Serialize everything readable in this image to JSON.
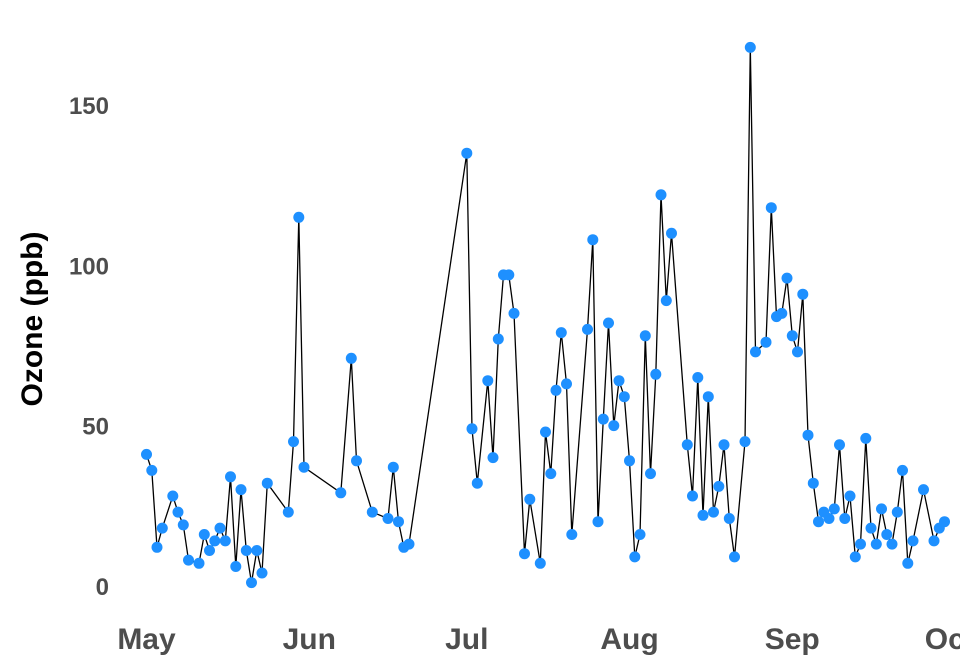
{
  "chart_data": {
    "type": "line",
    "ylabel": "Ozone (ppb)",
    "xlabel": "",
    "title": "",
    "ylim": [
      -6,
      175
    ],
    "xlim": [
      "1973-04-25",
      "1973-10-02"
    ],
    "y_ticks": [
      0,
      50,
      100,
      150
    ],
    "x_ticks": [
      {
        "date": "1973-05-01",
        "label": "May"
      },
      {
        "date": "1973-06-01",
        "label": "Jun"
      },
      {
        "date": "1973-07-01",
        "label": "Jul"
      },
      {
        "date": "1973-08-01",
        "label": "Aug"
      },
      {
        "date": "1973-09-01",
        "label": "Sep"
      },
      {
        "date": "1973-10-01",
        "label": "Oct"
      }
    ],
    "grid": false,
    "line_color": "#000000",
    "point_color": "#1e90ff",
    "series": [
      {
        "points": [
          [
            "1973-05-01",
            41
          ],
          [
            "1973-05-02",
            36
          ],
          [
            "1973-05-03",
            12
          ],
          [
            "1973-05-04",
            18
          ],
          [
            "1973-05-06",
            28
          ],
          [
            "1973-05-07",
            23
          ],
          [
            "1973-05-08",
            19
          ],
          [
            "1973-05-09",
            8
          ],
          [
            "1973-05-11",
            7
          ],
          [
            "1973-05-12",
            16
          ],
          [
            "1973-05-13",
            11
          ],
          [
            "1973-05-14",
            14
          ],
          [
            "1973-05-15",
            18
          ],
          [
            "1973-05-16",
            14
          ],
          [
            "1973-05-17",
            34
          ],
          [
            "1973-05-18",
            6
          ],
          [
            "1973-05-19",
            30
          ],
          [
            "1973-05-20",
            11
          ],
          [
            "1973-05-21",
            1
          ],
          [
            "1973-05-22",
            11
          ],
          [
            "1973-05-23",
            4
          ],
          [
            "1973-05-24",
            32
          ],
          [
            "1973-05-28",
            23
          ],
          [
            "1973-05-29",
            45
          ],
          [
            "1973-05-30",
            115
          ],
          [
            "1973-05-31",
            37
          ],
          [
            "1973-06-07",
            29
          ],
          [
            "1973-06-09",
            71
          ],
          [
            "1973-06-10",
            39
          ],
          [
            "1973-06-13",
            23
          ],
          [
            "1973-06-16",
            21
          ],
          [
            "1973-06-17",
            37
          ],
          [
            "1973-06-18",
            20
          ],
          [
            "1973-06-19",
            12
          ],
          [
            "1973-06-20",
            13
          ],
          [
            "1973-07-01",
            135
          ],
          [
            "1973-07-02",
            49
          ],
          [
            "1973-07-03",
            32
          ],
          [
            "1973-07-05",
            64
          ],
          [
            "1973-07-06",
            40
          ],
          [
            "1973-07-07",
            77
          ],
          [
            "1973-07-08",
            97
          ],
          [
            "1973-07-09",
            97
          ],
          [
            "1973-07-10",
            85
          ],
          [
            "1973-07-12",
            10
          ],
          [
            "1973-07-13",
            27
          ],
          [
            "1973-07-15",
            7
          ],
          [
            "1973-07-16",
            48
          ],
          [
            "1973-07-17",
            35
          ],
          [
            "1973-07-18",
            61
          ],
          [
            "1973-07-19",
            79
          ],
          [
            "1973-07-20",
            63
          ],
          [
            "1973-07-21",
            16
          ],
          [
            "1973-07-24",
            80
          ],
          [
            "1973-07-25",
            108
          ],
          [
            "1973-07-26",
            20
          ],
          [
            "1973-07-27",
            52
          ],
          [
            "1973-07-28",
            82
          ],
          [
            "1973-07-29",
            50
          ],
          [
            "1973-07-30",
            64
          ],
          [
            "1973-07-31",
            59
          ],
          [
            "1973-08-01",
            39
          ],
          [
            "1973-08-02",
            9
          ],
          [
            "1973-08-03",
            16
          ],
          [
            "1973-08-04",
            78
          ],
          [
            "1973-08-05",
            35
          ],
          [
            "1973-08-06",
            66
          ],
          [
            "1973-08-07",
            122
          ],
          [
            "1973-08-08",
            89
          ],
          [
            "1973-08-09",
            110
          ],
          [
            "1973-08-12",
            44
          ],
          [
            "1973-08-13",
            28
          ],
          [
            "1973-08-14",
            65
          ],
          [
            "1973-08-15",
            22
          ],
          [
            "1973-08-16",
            59
          ],
          [
            "1973-08-17",
            23
          ],
          [
            "1973-08-18",
            31
          ],
          [
            "1973-08-19",
            44
          ],
          [
            "1973-08-20",
            21
          ],
          [
            "1973-08-21",
            9
          ],
          [
            "1973-08-23",
            45
          ],
          [
            "1973-08-24",
            168
          ],
          [
            "1973-08-25",
            73
          ],
          [
            "1973-08-27",
            76
          ],
          [
            "1973-08-28",
            118
          ],
          [
            "1973-08-29",
            84
          ],
          [
            "1973-08-30",
            85
          ],
          [
            "1973-08-31",
            96
          ],
          [
            "1973-09-01",
            78
          ],
          [
            "1973-09-02",
            73
          ],
          [
            "1973-09-03",
            91
          ],
          [
            "1973-09-04",
            47
          ],
          [
            "1973-09-05",
            32
          ],
          [
            "1973-09-06",
            20
          ],
          [
            "1973-09-07",
            23
          ],
          [
            "1973-09-08",
            21
          ],
          [
            "1973-09-09",
            24
          ],
          [
            "1973-09-10",
            44
          ],
          [
            "1973-09-11",
            21
          ],
          [
            "1973-09-12",
            28
          ],
          [
            "1973-09-13",
            9
          ],
          [
            "1973-09-14",
            13
          ],
          [
            "1973-09-15",
            46
          ],
          [
            "1973-09-16",
            18
          ],
          [
            "1973-09-17",
            13
          ],
          [
            "1973-09-18",
            24
          ],
          [
            "1973-09-19",
            16
          ],
          [
            "1973-09-20",
            13
          ],
          [
            "1973-09-21",
            23
          ],
          [
            "1973-09-22",
            36
          ],
          [
            "1973-09-23",
            7
          ],
          [
            "1973-09-24",
            14
          ],
          [
            "1973-09-26",
            30
          ],
          [
            "1973-09-28",
            14
          ],
          [
            "1973-09-29",
            18
          ],
          [
            "1973-09-30",
            20
          ]
        ]
      }
    ]
  }
}
